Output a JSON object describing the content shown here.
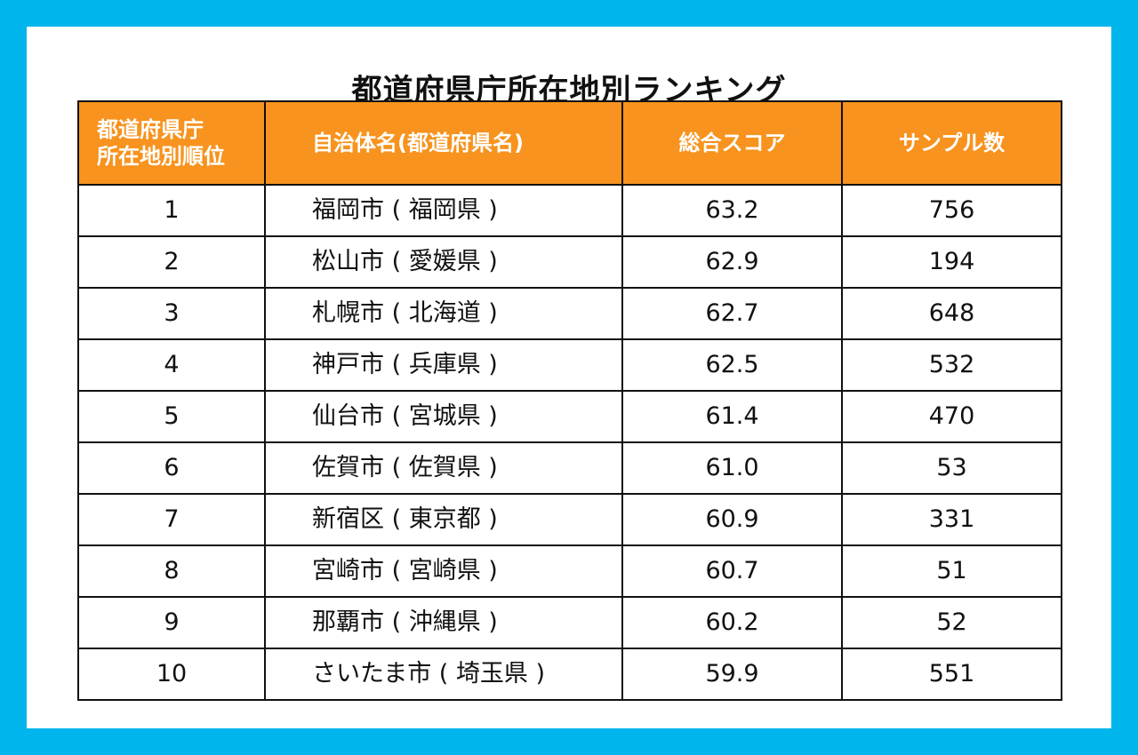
{
  "title": "都道府県庁所在地別ランキング",
  "table": {
    "headers": {
      "rank_line1": "都道府県庁",
      "rank_line2": "所在地別順位",
      "name": "自治体名(都道府県名)",
      "score": "総合スコア",
      "samples": "サンプル数"
    },
    "rows": [
      {
        "rank": "1",
        "name": "福岡市 ( 福岡県 )",
        "score": "63.2",
        "samples": "756"
      },
      {
        "rank": "2",
        "name": "松山市 ( 愛媛県 )",
        "score": "62.9",
        "samples": "194"
      },
      {
        "rank": "3",
        "name": "札幌市 ( 北海道 )",
        "score": "62.7",
        "samples": "648"
      },
      {
        "rank": "4",
        "name": "神戸市 ( 兵庫県 )",
        "score": "62.5",
        "samples": "532"
      },
      {
        "rank": "5",
        "name": "仙台市 ( 宮城県 )",
        "score": "61.4",
        "samples": "470"
      },
      {
        "rank": "6",
        "name": "佐賀市 ( 佐賀県 )",
        "score": "61.0",
        "samples": "53"
      },
      {
        "rank": "7",
        "name": "新宿区 ( 東京都 )",
        "score": "60.9",
        "samples": "331"
      },
      {
        "rank": "8",
        "name": "宮崎市 ( 宮崎県 )",
        "score": "60.7",
        "samples": "51"
      },
      {
        "rank": "9",
        "name": "那覇市 ( 沖縄県 )",
        "score": "60.2",
        "samples": "52"
      },
      {
        "rank": "10",
        "name": "さいたま市 ( 埼玉県 )",
        "score": "59.9",
        "samples": "551"
      }
    ]
  },
  "colors": {
    "background": "#00b5ec",
    "card": "#ffffff",
    "header_fill": "#f7931e",
    "header_text": "#ffffff",
    "border": "#111111"
  }
}
